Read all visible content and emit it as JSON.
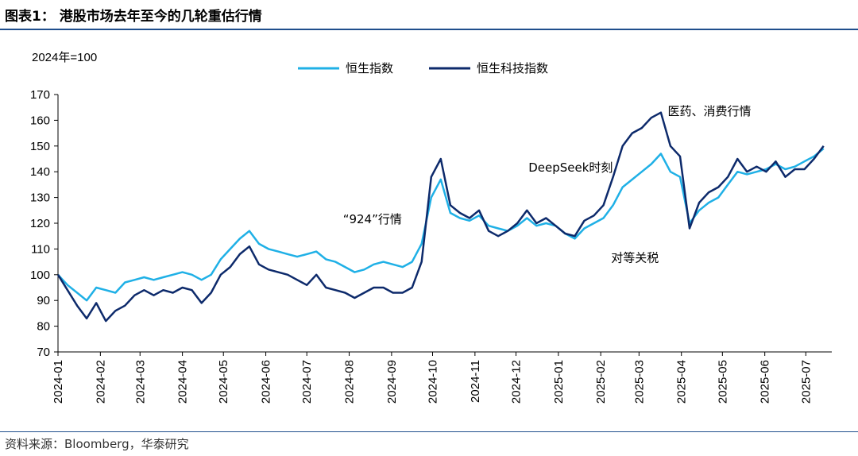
{
  "header": {
    "title": "图表1：  港股市场去年至今的几轮重估行情"
  },
  "footer": {
    "source": "资料来源：Bloomberg，华泰研究"
  },
  "colors": {
    "hsi": "#1fb0e6",
    "hstech": "#0d2a6b",
    "rule": "#1f4e8c"
  },
  "chart_data": {
    "type": "line",
    "unit_label": "2024年=100",
    "ylim": [
      70,
      170
    ],
    "yticks": [
      70,
      80,
      90,
      100,
      110,
      120,
      130,
      140,
      150,
      160,
      170
    ],
    "xticks": [
      "2024-01",
      "2024-02",
      "2024-03",
      "2024-04",
      "2024-05",
      "2024-06",
      "2024-07",
      "2024-08",
      "2024-09",
      "2024-10",
      "2024-11",
      "2024-12",
      "2025-01",
      "2025-02",
      "2025-03",
      "2025-04",
      "2025-05",
      "2025-06",
      "2025-07"
    ],
    "legend": [
      "恒生指数",
      "恒生科技指数"
    ],
    "annotations": [
      {
        "text": "“924”行情",
        "x": "2024-08-18",
        "y": 120
      },
      {
        "text": "DeepSeek时刻",
        "x": "2025-01-10",
        "y": 140
      },
      {
        "text": "医药、消费行情",
        "x": "2025-03-22",
        "y": 162
      },
      {
        "text": "对等关税",
        "x": "2025-02-26",
        "y": 105
      }
    ],
    "series": [
      {
        "name": "恒生指数",
        "color": "#1fb0e6",
        "points": [
          [
            "2024-01-01",
            100
          ],
          [
            "2024-01-08",
            96
          ],
          [
            "2024-01-15",
            93
          ],
          [
            "2024-01-22",
            90
          ],
          [
            "2024-01-29",
            95
          ],
          [
            "2024-02-05",
            94
          ],
          [
            "2024-02-12",
            93
          ],
          [
            "2024-02-19",
            97
          ],
          [
            "2024-02-26",
            98
          ],
          [
            "2024-03-04",
            99
          ],
          [
            "2024-03-11",
            98
          ],
          [
            "2024-03-18",
            99
          ],
          [
            "2024-03-25",
            100
          ],
          [
            "2024-04-01",
            101
          ],
          [
            "2024-04-08",
            100
          ],
          [
            "2024-04-15",
            98
          ],
          [
            "2024-04-22",
            100
          ],
          [
            "2024-04-29",
            106
          ],
          [
            "2024-05-06",
            110
          ],
          [
            "2024-05-13",
            114
          ],
          [
            "2024-05-20",
            117
          ],
          [
            "2024-05-27",
            112
          ],
          [
            "2024-06-03",
            110
          ],
          [
            "2024-06-10",
            109
          ],
          [
            "2024-06-17",
            108
          ],
          [
            "2024-06-24",
            107
          ],
          [
            "2024-07-01",
            108
          ],
          [
            "2024-07-08",
            109
          ],
          [
            "2024-07-15",
            106
          ],
          [
            "2024-07-22",
            105
          ],
          [
            "2024-07-29",
            103
          ],
          [
            "2024-08-05",
            101
          ],
          [
            "2024-08-12",
            102
          ],
          [
            "2024-08-19",
            104
          ],
          [
            "2024-08-26",
            105
          ],
          [
            "2024-09-02",
            104
          ],
          [
            "2024-09-09",
            103
          ],
          [
            "2024-09-16",
            105
          ],
          [
            "2024-09-23",
            112
          ],
          [
            "2024-09-30",
            130
          ],
          [
            "2024-10-07",
            137
          ],
          [
            "2024-10-14",
            124
          ],
          [
            "2024-10-21",
            122
          ],
          [
            "2024-10-28",
            121
          ],
          [
            "2024-11-04",
            123
          ],
          [
            "2024-11-11",
            119
          ],
          [
            "2024-11-18",
            118
          ],
          [
            "2024-11-25",
            117
          ],
          [
            "2024-12-02",
            119
          ],
          [
            "2024-12-09",
            122
          ],
          [
            "2024-12-16",
            119
          ],
          [
            "2024-12-23",
            120
          ],
          [
            "2024-12-30",
            119
          ],
          [
            "2025-01-06",
            116
          ],
          [
            "2025-01-13",
            114
          ],
          [
            "2025-01-20",
            118
          ],
          [
            "2025-01-27",
            120
          ],
          [
            "2025-02-03",
            122
          ],
          [
            "2025-02-10",
            127
          ],
          [
            "2025-02-17",
            134
          ],
          [
            "2025-02-24",
            137
          ],
          [
            "2025-03-03",
            140
          ],
          [
            "2025-03-10",
            143
          ],
          [
            "2025-03-17",
            147
          ],
          [
            "2025-03-24",
            140
          ],
          [
            "2025-03-31",
            138
          ],
          [
            "2025-04-07",
            120
          ],
          [
            "2025-04-14",
            125
          ],
          [
            "2025-04-21",
            128
          ],
          [
            "2025-04-28",
            130
          ],
          [
            "2025-05-05",
            135
          ],
          [
            "2025-05-12",
            140
          ],
          [
            "2025-05-19",
            139
          ],
          [
            "2025-05-26",
            140
          ],
          [
            "2025-06-02",
            141
          ],
          [
            "2025-06-09",
            143
          ],
          [
            "2025-06-16",
            141
          ],
          [
            "2025-06-23",
            142
          ],
          [
            "2025-06-30",
            144
          ],
          [
            "2025-07-07",
            146
          ],
          [
            "2025-07-14",
            149
          ]
        ]
      },
      {
        "name": "恒生科技指数",
        "color": "#0d2a6b",
        "points": [
          [
            "2024-01-01",
            100
          ],
          [
            "2024-01-08",
            94
          ],
          [
            "2024-01-15",
            88
          ],
          [
            "2024-01-22",
            83
          ],
          [
            "2024-01-29",
            89
          ],
          [
            "2024-02-05",
            82
          ],
          [
            "2024-02-12",
            86
          ],
          [
            "2024-02-19",
            88
          ],
          [
            "2024-02-26",
            92
          ],
          [
            "2024-03-04",
            94
          ],
          [
            "2024-03-11",
            92
          ],
          [
            "2024-03-18",
            94
          ],
          [
            "2024-03-25",
            93
          ],
          [
            "2024-04-01",
            95
          ],
          [
            "2024-04-08",
            94
          ],
          [
            "2024-04-15",
            89
          ],
          [
            "2024-04-22",
            93
          ],
          [
            "2024-04-29",
            100
          ],
          [
            "2024-05-06",
            103
          ],
          [
            "2024-05-13",
            108
          ],
          [
            "2024-05-20",
            111
          ],
          [
            "2024-05-27",
            104
          ],
          [
            "2024-06-03",
            102
          ],
          [
            "2024-06-10",
            101
          ],
          [
            "2024-06-17",
            100
          ],
          [
            "2024-06-24",
            98
          ],
          [
            "2024-07-01",
            96
          ],
          [
            "2024-07-08",
            100
          ],
          [
            "2024-07-15",
            95
          ],
          [
            "2024-07-22",
            94
          ],
          [
            "2024-07-29",
            93
          ],
          [
            "2024-08-05",
            91
          ],
          [
            "2024-08-12",
            93
          ],
          [
            "2024-08-19",
            95
          ],
          [
            "2024-08-26",
            95
          ],
          [
            "2024-09-02",
            93
          ],
          [
            "2024-09-09",
            93
          ],
          [
            "2024-09-16",
            95
          ],
          [
            "2024-09-23",
            105
          ],
          [
            "2024-09-30",
            138
          ],
          [
            "2024-10-07",
            145
          ],
          [
            "2024-10-14",
            127
          ],
          [
            "2024-10-21",
            124
          ],
          [
            "2024-10-28",
            122
          ],
          [
            "2024-11-04",
            125
          ],
          [
            "2024-11-11",
            117
          ],
          [
            "2024-11-18",
            115
          ],
          [
            "2024-11-25",
            117
          ],
          [
            "2024-12-02",
            120
          ],
          [
            "2024-12-09",
            125
          ],
          [
            "2024-12-16",
            120
          ],
          [
            "2024-12-23",
            122
          ],
          [
            "2024-12-30",
            119
          ],
          [
            "2025-01-06",
            116
          ],
          [
            "2025-01-13",
            115
          ],
          [
            "2025-01-20",
            121
          ],
          [
            "2025-01-27",
            123
          ],
          [
            "2025-02-03",
            127
          ],
          [
            "2025-02-10",
            138
          ],
          [
            "2025-02-17",
            150
          ],
          [
            "2025-02-24",
            155
          ],
          [
            "2025-03-03",
            157
          ],
          [
            "2025-03-10",
            161
          ],
          [
            "2025-03-17",
            163
          ],
          [
            "2025-03-24",
            150
          ],
          [
            "2025-03-31",
            146
          ],
          [
            "2025-04-07",
            118
          ],
          [
            "2025-04-14",
            128
          ],
          [
            "2025-04-21",
            132
          ],
          [
            "2025-04-28",
            134
          ],
          [
            "2025-05-05",
            138
          ],
          [
            "2025-05-12",
            145
          ],
          [
            "2025-05-19",
            140
          ],
          [
            "2025-05-26",
            142
          ],
          [
            "2025-06-02",
            140
          ],
          [
            "2025-06-09",
            144
          ],
          [
            "2025-06-16",
            138
          ],
          [
            "2025-06-23",
            141
          ],
          [
            "2025-06-30",
            141
          ],
          [
            "2025-07-07",
            145
          ],
          [
            "2025-07-14",
            150
          ]
        ]
      }
    ]
  }
}
